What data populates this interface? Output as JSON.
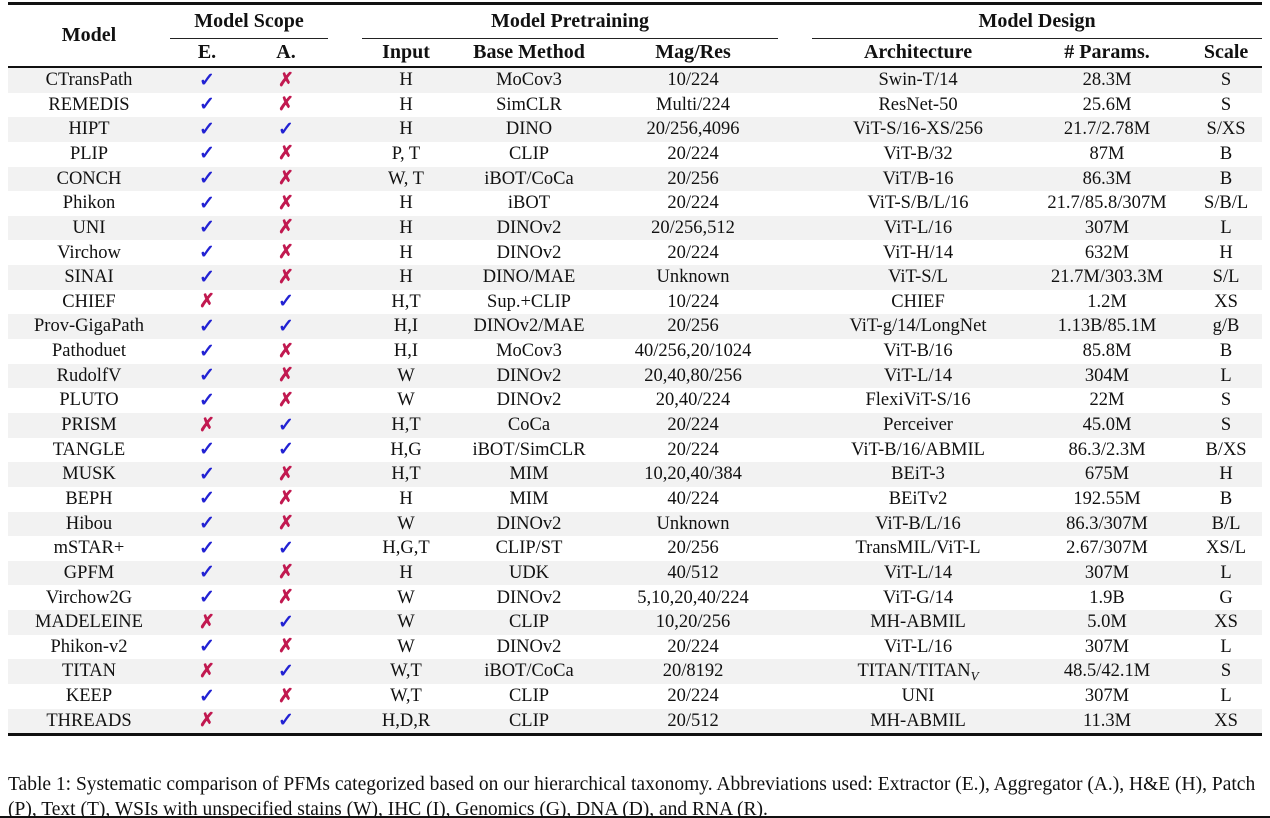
{
  "table": {
    "groups": {
      "scope": "Model Scope",
      "pretraining": "Model Pretraining",
      "design": "Model Design"
    },
    "columns": {
      "model": "Model",
      "extractor": "E.",
      "aggregator": "A.",
      "input": "Input",
      "base_method": "Base Method",
      "mag_res": "Mag/Res",
      "architecture": "Architecture",
      "params": "# Params.",
      "scale": "Scale"
    },
    "symbols": {
      "check": "✓",
      "cross": "✗"
    },
    "colors": {
      "check": "#2222d3",
      "cross": "#c11950",
      "stripe": "#f2f2f2"
    },
    "rows": [
      {
        "model": "CTransPath",
        "e": true,
        "a": false,
        "input": "H",
        "base_method": "MoCov3",
        "mag_res": "10/224",
        "architecture": "Swin-T/14",
        "params": "28.3M",
        "scale": "S"
      },
      {
        "model": "REMEDIS",
        "e": true,
        "a": false,
        "input": "H",
        "base_method": "SimCLR",
        "mag_res": "Multi/224",
        "architecture": "ResNet-50",
        "params": "25.6M",
        "scale": "S"
      },
      {
        "model": "HIPT",
        "e": true,
        "a": true,
        "input": "H",
        "base_method": "DINO",
        "mag_res": "20/256,4096",
        "architecture": "ViT-S/16-XS/256",
        "params": "21.7/2.78M",
        "scale": "S/XS"
      },
      {
        "model": "PLIP",
        "e": true,
        "a": false,
        "input": "P, T",
        "base_method": "CLIP",
        "mag_res": "20/224",
        "architecture": "ViT-B/32",
        "params": "87M",
        "scale": "B"
      },
      {
        "model": "CONCH",
        "e": true,
        "a": false,
        "input": "W, T",
        "base_method": "iBOT/CoCa",
        "mag_res": "20/256",
        "architecture": "ViT/B-16",
        "params": "86.3M",
        "scale": "B"
      },
      {
        "model": "Phikon",
        "e": true,
        "a": false,
        "input": "H",
        "base_method": "iBOT",
        "mag_res": "20/224",
        "architecture": "ViT-S/B/L/16",
        "params": "21.7/85.8/307M",
        "scale": "S/B/L"
      },
      {
        "model": "UNI",
        "e": true,
        "a": false,
        "input": "H",
        "base_method": "DINOv2",
        "mag_res": "20/256,512",
        "architecture": "ViT-L/16",
        "params": "307M",
        "scale": "L"
      },
      {
        "model": "Virchow",
        "e": true,
        "a": false,
        "input": "H",
        "base_method": "DINOv2",
        "mag_res": "20/224",
        "architecture": "ViT-H/14",
        "params": "632M",
        "scale": "H"
      },
      {
        "model": "SINAI",
        "e": true,
        "a": false,
        "input": "H",
        "base_method": "DINO/MAE",
        "mag_res": "Unknown",
        "architecture": "ViT-S/L",
        "params": "21.7M/303.3M",
        "scale": "S/L"
      },
      {
        "model": "CHIEF",
        "e": false,
        "a": true,
        "input": "H,T",
        "base_method": "Sup.+CLIP",
        "mag_res": "10/224",
        "architecture": "CHIEF",
        "params": "1.2M",
        "scale": "XS"
      },
      {
        "model": "Prov-GigaPath",
        "e": true,
        "a": true,
        "input": "H,I",
        "base_method": "DINOv2/MAE",
        "mag_res": "20/256",
        "architecture": "ViT-g/14/LongNet",
        "params": "1.13B/85.1M",
        "scale": "g/B"
      },
      {
        "model": "Pathoduet",
        "e": true,
        "a": false,
        "input": "H,I",
        "base_method": "MoCov3",
        "mag_res": "40/256,20/1024",
        "architecture": "ViT-B/16",
        "params": "85.8M",
        "scale": "B"
      },
      {
        "model": "RudolfV",
        "e": true,
        "a": false,
        "input": "W",
        "base_method": "DINOv2",
        "mag_res": "20,40,80/256",
        "architecture": "ViT-L/14",
        "params": "304M",
        "scale": "L"
      },
      {
        "model": "PLUTO",
        "e": true,
        "a": false,
        "input": "W",
        "base_method": "DINOv2",
        "mag_res": "20,40/224",
        "architecture": "FlexiViT-S/16",
        "params": "22M",
        "scale": "S"
      },
      {
        "model": "PRISM",
        "e": false,
        "a": true,
        "input": "H,T",
        "base_method": "CoCa",
        "mag_res": "20/224",
        "architecture": "Perceiver",
        "params": "45.0M",
        "scale": "S"
      },
      {
        "model": "TANGLE",
        "e": true,
        "a": true,
        "input": "H,G",
        "base_method": "iBOT/SimCLR",
        "mag_res": "20/224",
        "architecture": "ViT-B/16/ABMIL",
        "params": "86.3/2.3M",
        "scale": "B/XS"
      },
      {
        "model": "MUSK",
        "e": true,
        "a": false,
        "input": "H,T",
        "base_method": "MIM",
        "mag_res": "10,20,40/384",
        "architecture": "BEiT-3",
        "params": "675M",
        "scale": "H"
      },
      {
        "model": "BEPH",
        "e": true,
        "a": false,
        "input": "H",
        "base_method": "MIM",
        "mag_res": "40/224",
        "architecture": "BEiTv2",
        "params": "192.55M",
        "scale": "B"
      },
      {
        "model": "Hibou",
        "e": true,
        "a": false,
        "input": "W",
        "base_method": "DINOv2",
        "mag_res": "Unknown",
        "architecture": "ViT-B/L/16",
        "params": "86.3/307M",
        "scale": "B/L"
      },
      {
        "model": "mSTAR+",
        "e": true,
        "a": true,
        "input": "H,G,T",
        "base_method": "CLIP/ST",
        "mag_res": "20/256",
        "architecture": "TransMIL/ViT-L",
        "params": "2.67/307M",
        "scale": "XS/L"
      },
      {
        "model": "GPFM",
        "e": true,
        "a": false,
        "input": "H",
        "base_method": "UDK",
        "mag_res": "40/512",
        "architecture": "ViT-L/14",
        "params": "307M",
        "scale": "L"
      },
      {
        "model": "Virchow2G",
        "e": true,
        "a": false,
        "input": "W",
        "base_method": "DINOv2",
        "mag_res": "5,10,20,40/224",
        "architecture": "ViT-G/14",
        "params": "1.9B",
        "scale": "G"
      },
      {
        "model": "MADELEINE",
        "e": false,
        "a": true,
        "input": "W",
        "base_method": "CLIP",
        "mag_res": "10,20/256",
        "architecture": "MH-ABMIL",
        "params": "5.0M",
        "scale": "XS"
      },
      {
        "model": "Phikon-v2",
        "e": true,
        "a": false,
        "input": "W",
        "base_method": "DINOv2",
        "mag_res": "20/224",
        "architecture": "ViT-L/16",
        "params": "307M",
        "scale": "L"
      },
      {
        "model": "TITAN",
        "e": false,
        "a": true,
        "input": "W,T",
        "base_method": "iBOT/CoCa",
        "mag_res": "20/8192",
        "architecture": "TITAN/TITAN_{V}",
        "params": "48.5/42.1M",
        "scale": "S"
      },
      {
        "model": "KEEP",
        "e": true,
        "a": false,
        "input": "W,T",
        "base_method": "CLIP",
        "mag_res": "20/224",
        "architecture": "UNI",
        "params": "307M",
        "scale": "L"
      },
      {
        "model": "THREADS",
        "e": false,
        "a": true,
        "input": "H,D,R",
        "base_method": "CLIP",
        "mag_res": "20/512",
        "architecture": "MH-ABMIL",
        "params": "11.3M",
        "scale": "XS"
      }
    ],
    "caption": "Table 1: Systematic comparison of PFMs categorized based on our hierarchical taxonomy. Abbreviations used: Extractor (E.), Aggregator (A.), H&E (H), Patch (P), Text (T), WSIs with unspecified stains (W), IHC (I), Genomics (G), DNA (D), and RNA (R)."
  }
}
